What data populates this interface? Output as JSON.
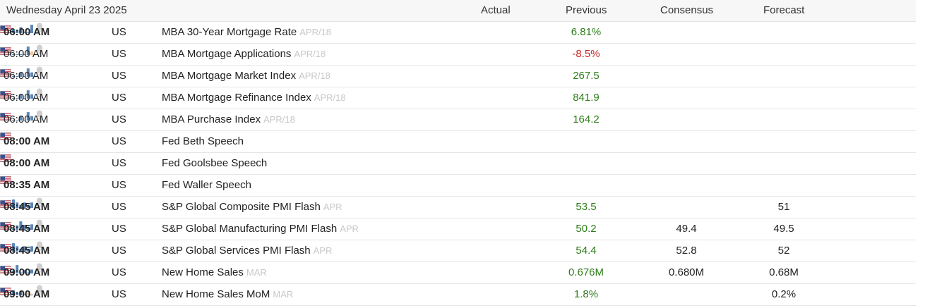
{
  "header": {
    "date": "Wednesday April 23 2025",
    "actual_label": "Actual",
    "previous_label": "Previous",
    "consensus_label": "Consensus",
    "forecast_label": "Forecast"
  },
  "colors": {
    "positive": "#2e7d1a",
    "negative": "#c62828",
    "bar": "#5b87b8",
    "bar_highlight": "#f3c48e",
    "bell": "#cfcfcf"
  },
  "rows": [
    {
      "time": "06:00 AM",
      "bold": true,
      "country": "US",
      "event": "MBA 30-Year Mortgage Rate",
      "period": "APR/18",
      "actual": "",
      "previous": "6.81%",
      "previous_sign": "pos",
      "consensus": "",
      "forecast": "",
      "chart": [
        0.35,
        0.35,
        0.6,
        0.05,
        0.05,
        0.85
      ],
      "chart_highlight": -1
    },
    {
      "time": "06:00 AM",
      "bold": false,
      "country": "US",
      "event": "MBA Mortgage Applications",
      "period": "APR/18",
      "actual": "",
      "previous": "-8.5%",
      "previous_sign": "neg",
      "consensus": "",
      "forecast": "",
      "chart": [
        0.05,
        0.05,
        0.05,
        0.05,
        0.85,
        0.35
      ],
      "chart_highlight": 5
    },
    {
      "time": "06:00 AM",
      "bold": false,
      "country": "US",
      "event": "MBA Mortgage Market Index",
      "period": "APR/18",
      "actual": "",
      "previous": "267.5",
      "previous_sign": "pos",
      "consensus": "",
      "forecast": "",
      "chart": [
        0.05,
        0.05,
        0.45,
        0.05,
        0.85,
        0.45
      ],
      "chart_highlight": -1
    },
    {
      "time": "06:00 AM",
      "bold": false,
      "country": "US",
      "event": "MBA Mortgage Refinance Index",
      "period": "APR/18",
      "actual": "",
      "previous": "841.9",
      "previous_sign": "pos",
      "consensus": "",
      "forecast": "",
      "chart": [
        0.05,
        0.05,
        0.45,
        0.05,
        0.85,
        0.45
      ],
      "chart_highlight": -1
    },
    {
      "time": "06:00 AM",
      "bold": false,
      "country": "US",
      "event": "MBA Purchase Index",
      "period": "APR/18",
      "actual": "",
      "previous": "164.2",
      "previous_sign": "pos",
      "consensus": "",
      "forecast": "",
      "chart": [
        0.05,
        0.05,
        0.45,
        0.05,
        0.85,
        0.45
      ],
      "chart_highlight": -1
    },
    {
      "time": "08:00 AM",
      "bold": true,
      "country": "US",
      "event": "Fed Beth Speech",
      "period": "",
      "actual": "",
      "previous": "",
      "previous_sign": "",
      "consensus": "",
      "forecast": "",
      "chart": [],
      "chart_highlight": -1
    },
    {
      "time": "08:00 AM",
      "bold": true,
      "country": "US",
      "event": "Fed Goolsbee Speech",
      "period": "",
      "actual": "",
      "previous": "",
      "previous_sign": "",
      "consensus": "",
      "forecast": "",
      "chart": [],
      "chart_highlight": -1
    },
    {
      "time": "08:35 AM",
      "bold": true,
      "country": "US",
      "event": "Fed Waller Speech",
      "period": "",
      "actual": "",
      "previous": "",
      "previous_sign": "",
      "consensus": "",
      "forecast": "",
      "chart": [],
      "chart_highlight": -1
    },
    {
      "time": "08:45 AM",
      "bold": true,
      "country": "US",
      "event": "S&P Global Composite PMI Flash",
      "period": "APR",
      "actual": "",
      "previous": "53.5",
      "previous_sign": "pos",
      "consensus": "",
      "forecast": "51",
      "chart": [
        0.85,
        0.55,
        0.3,
        0.55,
        0.3,
        0.55
      ],
      "chart_highlight": -1
    },
    {
      "time": "08:45 AM",
      "bold": true,
      "country": "US",
      "event": "S&P Global Manufacturing PMI Flash",
      "period": "APR",
      "actual": "",
      "previous": "50.2",
      "previous_sign": "pos",
      "consensus": "49.4",
      "forecast": "49.5",
      "chart": [
        0.1,
        0.45,
        0.85,
        0.5,
        0.3,
        0.55
      ],
      "chart_highlight": -1
    },
    {
      "time": "08:45 AM",
      "bold": true,
      "country": "US",
      "event": "S&P Global Services PMI Flash",
      "period": "APR",
      "actual": "",
      "previous": "54.4",
      "previous_sign": "pos",
      "consensus": "52.8",
      "forecast": "52",
      "chart": [
        0.85,
        0.55,
        0.3,
        0.55,
        0.3,
        0.55
      ],
      "chart_highlight": -1
    },
    {
      "time": "09:00 AM",
      "bold": true,
      "country": "US",
      "event": "New Home Sales",
      "period": "MAR",
      "actual": "",
      "previous": "0.676M",
      "previous_sign": "pos",
      "consensus": "0.680M",
      "forecast": "0.68M",
      "chart": [
        0.3,
        0.85,
        0.1,
        0.35,
        0.1,
        0.4
      ],
      "chart_highlight": -1
    },
    {
      "time": "09:00 AM",
      "bold": true,
      "country": "US",
      "event": "New Home Sales MoM",
      "period": "MAR",
      "actual": "",
      "previous": "1.8%",
      "previous_sign": "pos",
      "consensus": "",
      "forecast": "0.2%",
      "chart": [
        0.5,
        0.3,
        0.45,
        0.1,
        0.3,
        0.08
      ],
      "chart_highlight": 4
    }
  ]
}
